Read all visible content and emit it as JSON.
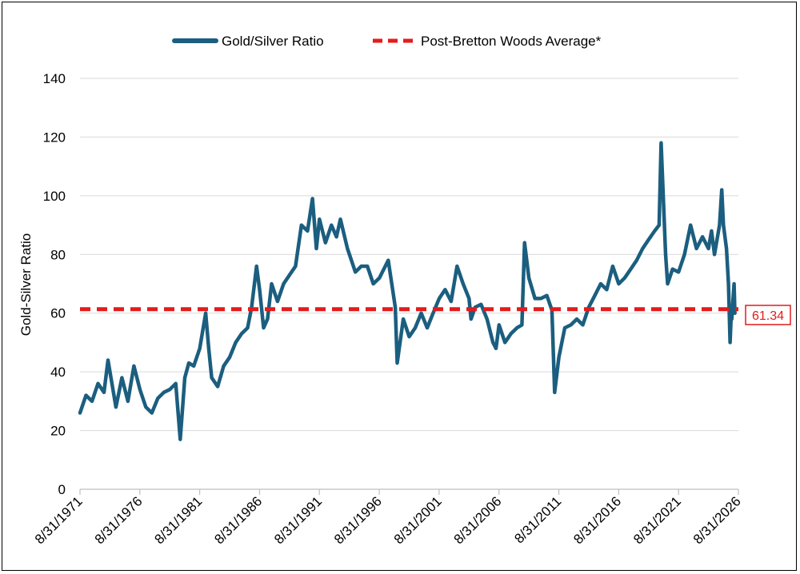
{
  "chart_data": {
    "type": "line",
    "ylabel": "Gold-Silver Ratio",
    "xlabel": "",
    "ylim": [
      0,
      140
    ],
    "yticks": [
      0,
      20,
      40,
      60,
      80,
      100,
      120,
      140
    ],
    "xlim": [
      "1971-08-31",
      "2026-08-31"
    ],
    "xticks": [
      "8/31/1971",
      "8/31/1976",
      "8/31/1981",
      "8/31/1986",
      "8/31/1991",
      "8/31/1996",
      "8/31/2001",
      "8/31/2006",
      "8/31/2011",
      "8/31/2016",
      "8/31/2021",
      "8/31/2026"
    ],
    "grid": true,
    "legend_position": "top",
    "colors": {
      "ratio": "#1b5e7f",
      "average": "#e41b1b",
      "grid": "#d9d9d9"
    },
    "series": [
      {
        "name": "Gold/Silver Ratio",
        "x": [
          "1971-08-31",
          "1972-03-01",
          "1972-09-01",
          "1973-03-01",
          "1973-09-01",
          "1974-01-01",
          "1974-04-01",
          "1974-09-01",
          "1975-03-01",
          "1975-09-01",
          "1976-03-01",
          "1976-09-01",
          "1977-03-01",
          "1977-09-01",
          "1978-03-01",
          "1978-09-01",
          "1979-03-01",
          "1979-09-01",
          "1980-01-15",
          "1980-06-01",
          "1980-10-01",
          "1981-03-01",
          "1981-09-01",
          "1982-03-01",
          "1982-06-01",
          "1982-09-01",
          "1983-03-01",
          "1983-09-01",
          "1984-03-01",
          "1984-09-01",
          "1985-03-01",
          "1985-09-01",
          "1986-01-01",
          "1986-06-01",
          "1986-09-01",
          "1987-01-01",
          "1987-05-01",
          "1987-09-01",
          "1988-03-01",
          "1988-09-01",
          "1989-03-01",
          "1989-09-01",
          "1990-03-01",
          "1990-09-01",
          "1991-02-01",
          "1991-06-01",
          "1991-09-01",
          "1992-03-01",
          "1992-09-01",
          "1993-02-01",
          "1993-06-01",
          "1994-01-01",
          "1994-09-01",
          "1995-03-01",
          "1995-09-01",
          "1996-03-01",
          "1996-09-01",
          "1997-06-01",
          "1998-01-01",
          "1998-03-01",
          "1998-09-01",
          "1999-03-01",
          "1999-09-01",
          "2000-03-01",
          "2000-09-01",
          "2001-03-01",
          "2001-09-01",
          "2002-03-01",
          "2002-09-01",
          "2003-03-01",
          "2003-09-01",
          "2004-03-01",
          "2004-05-01",
          "2004-09-01",
          "2005-03-01",
          "2005-09-01",
          "2006-03-01",
          "2006-06-01",
          "2006-09-01",
          "2007-03-01",
          "2007-09-01",
          "2008-03-01",
          "2008-08-01",
          "2008-10-20",
          "2009-03-01",
          "2009-09-01",
          "2010-03-01",
          "2010-09-01",
          "2011-02-01",
          "2011-04-25",
          "2011-09-01",
          "2012-03-01",
          "2012-09-01",
          "2013-03-01",
          "2013-09-01",
          "2014-03-01",
          "2014-09-01",
          "2015-03-01",
          "2015-09-01",
          "2016-03-01",
          "2016-09-01",
          "2017-03-01",
          "2017-09-01",
          "2018-03-01",
          "2018-09-01",
          "2019-03-01",
          "2019-09-01",
          "2020-01-15",
          "2020-03-18",
          "2020-08-01",
          "2020-10-01",
          "2021-03-01",
          "2021-09-01",
          "2022-03-01",
          "2022-09-01",
          "2023-03-01",
          "2023-09-01",
          "2024-03-01",
          "2024-06-01",
          "2024-09-01",
          "2025-02-01",
          "2025-04-10",
          "2025-06-01",
          "2025-09-01",
          "2025-11-01",
          "2025-12-20",
          "2026-01-25",
          "2026-02-10",
          "2026-03-15",
          "2026-04-20",
          "2026-05-15"
        ],
        "values": [
          26,
          32,
          30,
          36,
          33,
          44,
          38,
          28,
          38,
          30,
          42,
          34,
          28,
          26,
          31,
          33,
          34,
          36,
          17,
          38,
          43,
          42,
          48,
          60,
          48,
          38,
          35,
          42,
          45,
          50,
          53,
          55,
          62,
          76,
          68,
          55,
          58,
          70,
          64,
          70,
          73,
          76,
          90,
          88,
          99,
          82,
          92,
          84,
          90,
          86,
          92,
          82,
          74,
          76,
          76,
          70,
          72,
          78,
          62,
          43,
          58,
          52,
          55,
          60,
          55,
          60,
          65,
          68,
          64,
          76,
          70,
          65,
          58,
          62,
          63,
          58,
          50,
          48,
          56,
          50,
          53,
          55,
          56,
          84,
          72,
          65,
          65,
          66,
          61,
          33,
          45,
          55,
          56,
          58,
          56,
          62,
          66,
          70,
          68,
          76,
          70,
          72,
          75,
          78,
          82,
          85,
          88,
          90,
          118,
          80,
          70,
          75,
          74,
          80,
          90,
          82,
          86,
          82,
          88,
          80,
          90,
          102,
          90,
          82,
          70,
          50,
          60,
          58,
          64,
          70,
          60
        ]
      },
      {
        "name": "Post-Bretton Woods Average*",
        "value": 61.34,
        "label": "61.34"
      }
    ]
  }
}
